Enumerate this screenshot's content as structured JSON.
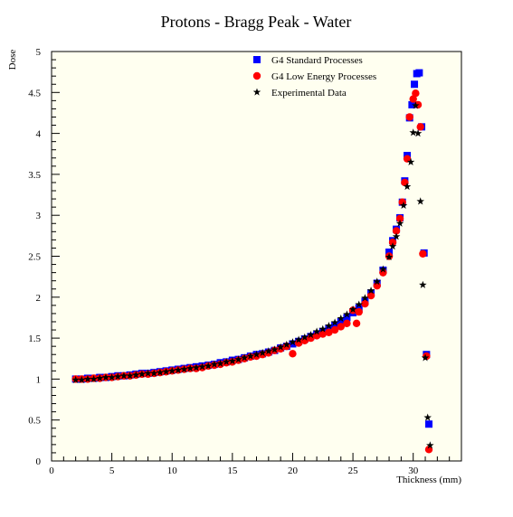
{
  "chart_data": {
    "type": "scatter",
    "title": "Protons - Bragg Peak - Water",
    "xlabel": "Thickness (mm)",
    "ylabel": "Dose",
    "xlim": [
      0,
      34
    ],
    "ylim": [
      0,
      5
    ],
    "xticks": [
      0,
      5,
      10,
      15,
      20,
      25,
      30
    ],
    "yticks": [
      0,
      0.5,
      1,
      1.5,
      2,
      2.5,
      3,
      3.5,
      4,
      4.5,
      5
    ],
    "xtick_labels": [
      "0",
      "5",
      "10",
      "15",
      "20",
      "25",
      "30"
    ],
    "ytick_labels": [
      "0",
      "0.5",
      "1",
      "1.5",
      "2",
      "2.5",
      "3",
      "3.5",
      "4",
      "4.5",
      "5"
    ],
    "legend_position": "top-right",
    "colors": {
      "plot_bg": "#fffff0",
      "standard": "#0000ff",
      "lowenergy": "#ff0000",
      "experimental": "#000000"
    },
    "series": [
      {
        "name": "G4 Standard Processes",
        "marker": "square",
        "color": "#0000ff",
        "x": [
          2.0,
          2.5,
          3.0,
          3.5,
          4.0,
          4.5,
          5.0,
          5.5,
          6.0,
          6.5,
          7.0,
          7.5,
          8.0,
          8.5,
          9.0,
          9.5,
          10.0,
          10.5,
          11.0,
          11.5,
          12.0,
          12.5,
          13.0,
          13.5,
          14.0,
          14.5,
          15.0,
          15.5,
          16.0,
          16.5,
          17.0,
          17.5,
          18.0,
          18.5,
          19.0,
          19.5,
          20.0,
          20.5,
          21.0,
          21.5,
          22.0,
          22.5,
          23.0,
          23.5,
          24.0,
          24.5,
          25.0,
          25.5,
          26.0,
          26.5,
          27.0,
          27.5,
          28.0,
          28.3,
          28.6,
          28.9,
          29.1,
          29.3,
          29.5,
          29.7,
          29.9,
          30.1,
          30.3,
          30.5,
          30.7,
          30.9,
          31.1,
          31.3
        ],
        "y": [
          1.0,
          1.0,
          1.01,
          1.01,
          1.02,
          1.02,
          1.03,
          1.04,
          1.04,
          1.05,
          1.06,
          1.07,
          1.07,
          1.08,
          1.09,
          1.1,
          1.11,
          1.12,
          1.13,
          1.14,
          1.15,
          1.16,
          1.17,
          1.18,
          1.2,
          1.21,
          1.23,
          1.24,
          1.26,
          1.28,
          1.3,
          1.31,
          1.33,
          1.35,
          1.38,
          1.4,
          1.43,
          1.46,
          1.49,
          1.52,
          1.55,
          1.58,
          1.62,
          1.66,
          1.7,
          1.75,
          1.81,
          1.87,
          1.95,
          2.05,
          2.17,
          2.33,
          2.55,
          2.69,
          2.83,
          2.97,
          3.16,
          3.42,
          3.73,
          4.19,
          4.35,
          4.6,
          4.73,
          4.74,
          4.08,
          2.54,
          1.3,
          0.45
        ]
      },
      {
        "name": "G4 Low Energy Processes",
        "marker": "circle",
        "color": "#ff0000",
        "x": [
          2.0,
          2.5,
          3.0,
          3.5,
          4.0,
          4.5,
          5.0,
          5.5,
          6.0,
          6.5,
          7.0,
          7.5,
          8.0,
          8.5,
          9.0,
          9.5,
          10.0,
          10.5,
          11.0,
          11.5,
          12.0,
          12.5,
          13.0,
          13.5,
          14.0,
          14.5,
          15.0,
          15.5,
          16.0,
          16.5,
          17.0,
          17.5,
          18.0,
          18.5,
          19.0,
          19.5,
          20.0,
          20.5,
          21.0,
          21.5,
          22.0,
          22.5,
          23.0,
          23.5,
          24.0,
          24.5,
          25.0,
          25.3,
          25.5,
          26.0,
          26.5,
          27.0,
          27.5,
          28.0,
          28.3,
          28.6,
          28.9,
          29.1,
          29.3,
          29.5,
          29.7,
          30.0,
          30.2,
          30.4,
          30.6,
          30.8,
          31.1,
          31.3
        ],
        "y": [
          1.0,
          1.0,
          1.0,
          1.01,
          1.01,
          1.02,
          1.02,
          1.03,
          1.04,
          1.04,
          1.05,
          1.06,
          1.06,
          1.07,
          1.08,
          1.09,
          1.1,
          1.11,
          1.12,
          1.13,
          1.13,
          1.14,
          1.16,
          1.17,
          1.18,
          1.2,
          1.21,
          1.23,
          1.25,
          1.27,
          1.28,
          1.3,
          1.32,
          1.35,
          1.37,
          1.4,
          1.31,
          1.44,
          1.47,
          1.5,
          1.53,
          1.55,
          1.57,
          1.6,
          1.64,
          1.68,
          1.84,
          1.68,
          1.82,
          1.92,
          2.02,
          2.14,
          2.3,
          2.5,
          2.67,
          2.81,
          2.96,
          3.16,
          3.4,
          3.69,
          4.2,
          4.42,
          4.49,
          4.35,
          4.08,
          2.53,
          1.28,
          0.14
        ]
      },
      {
        "name": "Experimental Data",
        "marker": "star",
        "color": "#000000",
        "x": [
          2.0,
          2.5,
          3.0,
          3.5,
          4.0,
          4.5,
          5.0,
          5.5,
          6.0,
          6.5,
          7.0,
          7.5,
          8.0,
          8.5,
          9.0,
          9.5,
          10.0,
          10.5,
          11.0,
          11.5,
          12.0,
          12.5,
          13.0,
          13.5,
          14.0,
          14.5,
          15.0,
          15.5,
          16.0,
          16.5,
          17.0,
          17.5,
          18.0,
          18.5,
          19.0,
          19.5,
          20.0,
          20.5,
          21.0,
          21.5,
          22.0,
          22.5,
          23.0,
          23.5,
          24.0,
          24.5,
          25.0,
          25.5,
          26.0,
          26.5,
          27.0,
          27.5,
          28.0,
          28.3,
          28.6,
          28.9,
          29.2,
          29.5,
          29.8,
          30.0,
          30.2,
          30.4,
          30.6,
          30.8,
          31.0,
          31.2,
          31.4
        ],
        "y": [
          0.99,
          0.99,
          1.0,
          1.0,
          1.01,
          1.02,
          1.02,
          1.03,
          1.04,
          1.04,
          1.05,
          1.06,
          1.07,
          1.07,
          1.08,
          1.09,
          1.1,
          1.11,
          1.12,
          1.13,
          1.14,
          1.15,
          1.16,
          1.18,
          1.19,
          1.21,
          1.22,
          1.24,
          1.26,
          1.28,
          1.3,
          1.32,
          1.34,
          1.36,
          1.39,
          1.42,
          1.45,
          1.48,
          1.51,
          1.54,
          1.58,
          1.61,
          1.65,
          1.69,
          1.74,
          1.79,
          1.85,
          1.91,
          1.99,
          2.08,
          2.19,
          2.34,
          2.49,
          2.62,
          2.74,
          2.9,
          3.12,
          3.35,
          3.65,
          4.01,
          4.34,
          4.0,
          3.17,
          2.15,
          1.26,
          0.53,
          0.19
        ]
      }
    ]
  }
}
